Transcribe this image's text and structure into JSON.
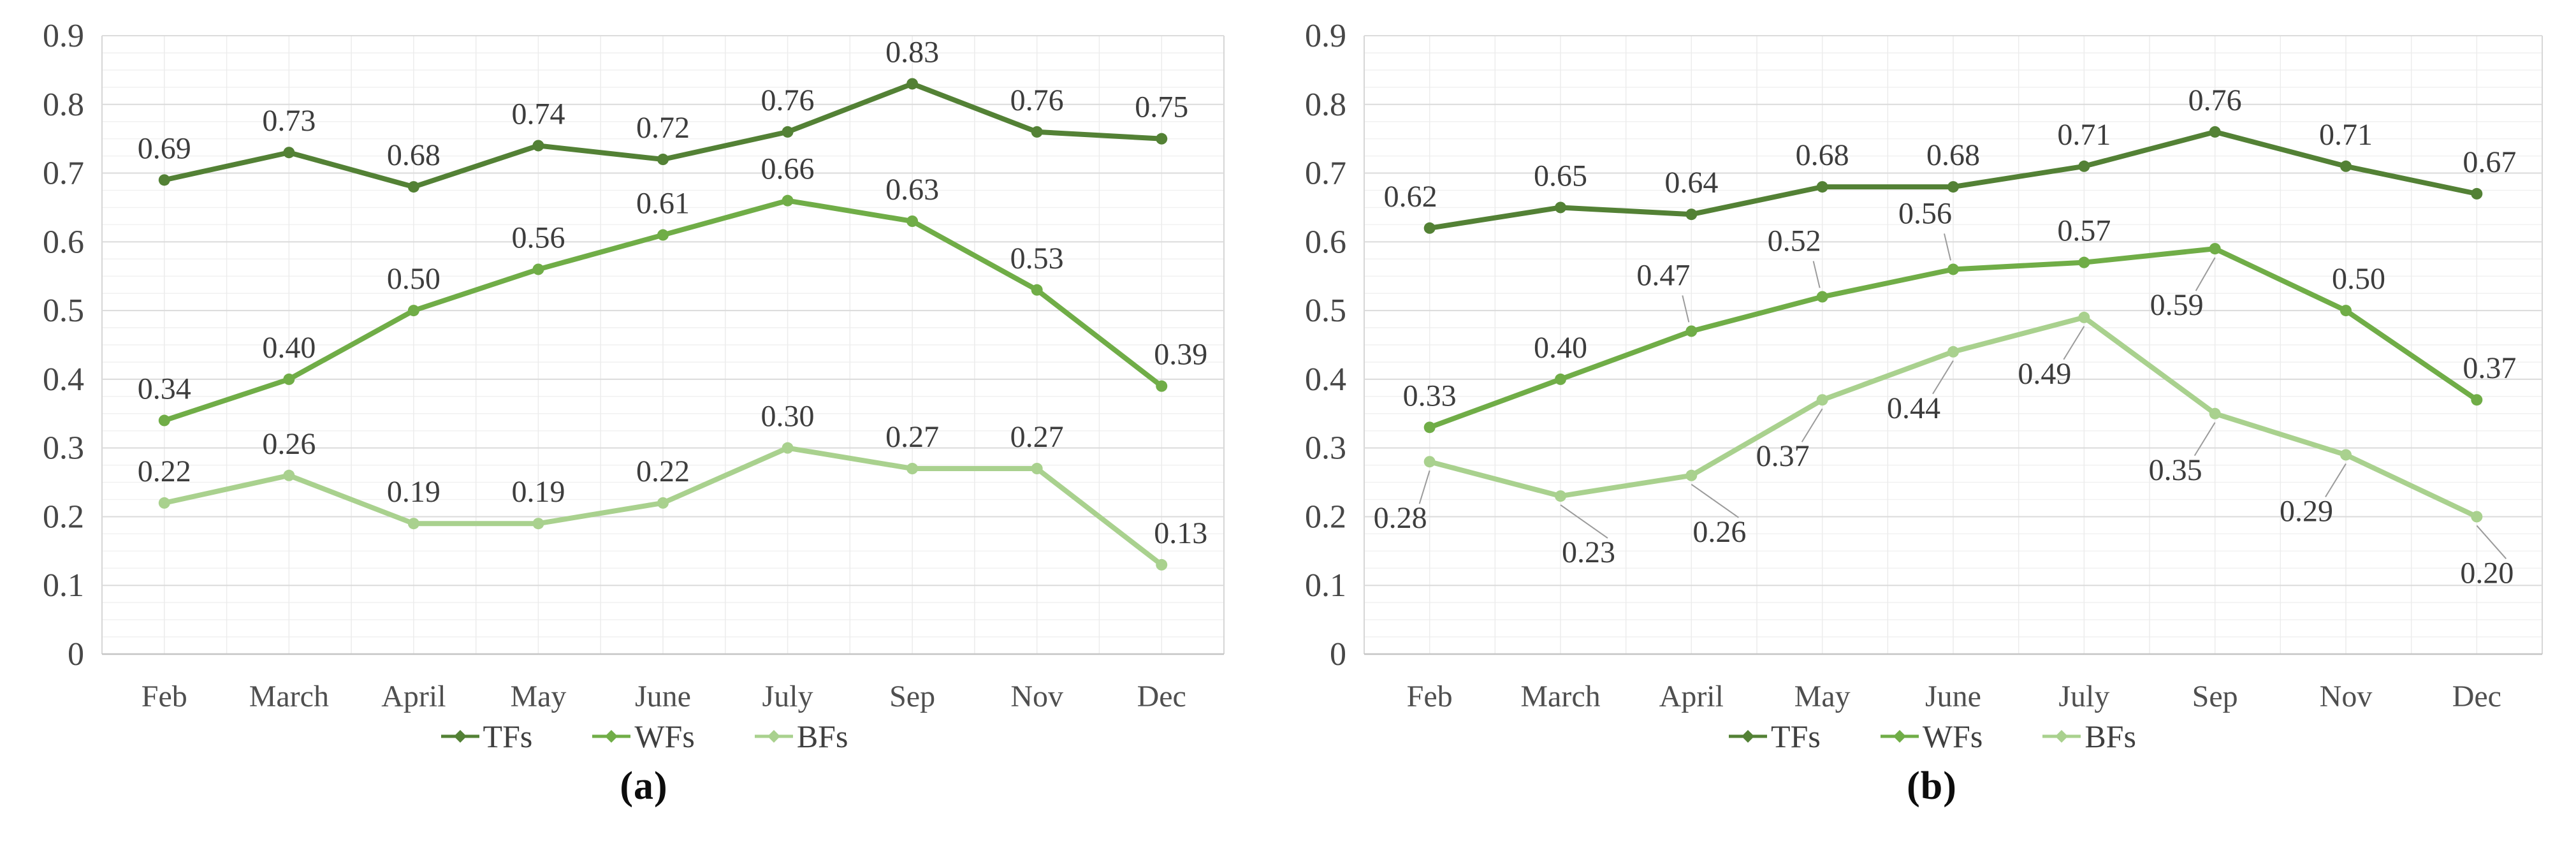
{
  "figure": {
    "background": "#ffffff",
    "text_color": "#3d3d3d",
    "axis_label_color": "#4f4f4f",
    "gridline_major_color": "#dbdbdb",
    "gridline_minor_color": "#f1f1f1"
  },
  "chart_data": [
    {
      "type": "line",
      "caption": "(a)",
      "categories": [
        "Feb",
        "March",
        "April",
        "May",
        "June",
        "July",
        "Sep",
        "Nov",
        "Dec"
      ],
      "xlabel": "",
      "ylabel": "",
      "ylim": [
        0,
        0.9
      ],
      "ytick_interval": 0.1,
      "yticks": [
        "0",
        "0.1",
        "0.2",
        "0.3",
        "0.4",
        "0.5",
        "0.6",
        "0.7",
        "0.8",
        "0.9"
      ],
      "grid": {
        "horizontal_major": true,
        "horizontal_minor": true,
        "vertical": true
      },
      "legend_position": "bottom",
      "series": [
        {
          "name": "TFs",
          "color": "#538135",
          "values": [
            0.69,
            0.73,
            0.68,
            0.74,
            0.72,
            0.76,
            0.83,
            0.76,
            0.75
          ],
          "labels": [
            "0.69",
            "0.73",
            "0.68",
            "0.74",
            "0.72",
            "0.76",
            "0.83",
            "0.76",
            "0.75"
          ],
          "label_pos": [
            "above",
            "above",
            "above",
            "above",
            "above",
            "above",
            "above",
            "above",
            "above"
          ],
          "label_leader": [
            false,
            false,
            false,
            false,
            false,
            false,
            false,
            false,
            false
          ],
          "label_dx": [
            0,
            0,
            0,
            0,
            0,
            0,
            0,
            0,
            0
          ]
        },
        {
          "name": "WFs",
          "color": "#70ad47",
          "values": [
            0.34,
            0.4,
            0.5,
            0.56,
            0.61,
            0.66,
            0.63,
            0.53,
            0.39
          ],
          "labels": [
            "0.34",
            "0.40",
            "0.50",
            "0.56",
            "0.61",
            "0.66",
            "0.63",
            "0.53",
            "0.39"
          ],
          "label_pos": [
            "above",
            "above",
            "above",
            "above",
            "above",
            "above",
            "above",
            "above",
            "above"
          ],
          "label_leader": [
            false,
            false,
            false,
            false,
            false,
            false,
            false,
            false,
            false
          ],
          "label_dx": [
            0,
            0,
            0,
            0,
            0,
            0,
            0,
            0,
            30
          ]
        },
        {
          "name": "BFs",
          "color": "#a9d18e",
          "values": [
            0.22,
            0.26,
            0.19,
            0.19,
            0.22,
            0.3,
            0.27,
            0.27,
            0.13
          ],
          "labels": [
            "0.22",
            "0.26",
            "0.19",
            "0.19",
            "0.22",
            "0.30",
            "0.27",
            "0.27",
            "0.13"
          ],
          "label_pos": [
            "above",
            "above",
            "above",
            "above",
            "above",
            "above",
            "above",
            "above",
            "above"
          ],
          "label_leader": [
            false,
            false,
            false,
            false,
            false,
            false,
            false,
            false,
            false
          ],
          "label_dx": [
            0,
            0,
            0,
            0,
            0,
            0,
            0,
            0,
            30
          ]
        }
      ]
    },
    {
      "type": "line",
      "caption": "(b)",
      "categories": [
        "Feb",
        "March",
        "April",
        "May",
        "June",
        "July",
        "Sep",
        "Nov",
        "Dec"
      ],
      "xlabel": "",
      "ylabel": "",
      "ylim": [
        0,
        0.9
      ],
      "ytick_interval": 0.1,
      "yticks": [
        "0",
        "0.1",
        "0.2",
        "0.3",
        "0.4",
        "0.5",
        "0.6",
        "0.7",
        "0.8",
        "0.9"
      ],
      "grid": {
        "horizontal_major": true,
        "horizontal_minor": true,
        "vertical": true
      },
      "legend_position": "bottom",
      "series": [
        {
          "name": "TFs",
          "color": "#538135",
          "values": [
            0.62,
            0.65,
            0.64,
            0.68,
            0.68,
            0.71,
            0.76,
            0.71,
            0.67
          ],
          "labels": [
            "0.62",
            "0.65",
            "0.64",
            "0.68",
            "0.68",
            "0.71",
            "0.76",
            "0.71",
            "0.67"
          ],
          "label_pos": [
            "above",
            "above",
            "above",
            "above",
            "above",
            "above",
            "above",
            "above",
            "above"
          ],
          "label_leader": [
            false,
            false,
            false,
            false,
            false,
            false,
            false,
            false,
            false
          ],
          "label_dx": [
            -30,
            0,
            0,
            0,
            0,
            0,
            0,
            0,
            20
          ]
        },
        {
          "name": "WFs",
          "color": "#70ad47",
          "values": [
            0.33,
            0.4,
            0.47,
            0.52,
            0.56,
            0.57,
            0.59,
            0.5,
            0.37
          ],
          "labels": [
            "0.33",
            "0.40",
            "0.47",
            "0.52",
            "0.56",
            "0.57",
            "0.59",
            "0.50",
            "0.37"
          ],
          "label_pos": [
            "above",
            "above",
            "above",
            "above",
            "above",
            "above",
            "below",
            "above",
            "above"
          ],
          "label_leader": [
            false,
            false,
            true,
            true,
            true,
            false,
            true,
            false,
            false
          ],
          "label_dx": [
            0,
            0,
            -44,
            -44,
            -44,
            0,
            -60,
            20,
            20
          ]
        },
        {
          "name": "BFs",
          "color": "#a9d18e",
          "values": [
            0.28,
            0.23,
            0.26,
            0.37,
            0.44,
            0.49,
            0.35,
            0.29,
            0.2
          ],
          "labels": [
            "0.28",
            "0.23",
            "0.26",
            "0.37",
            "0.44",
            "0.49",
            "0.35",
            "0.29",
            "0.20"
          ],
          "label_pos": [
            "below",
            "below",
            "below",
            "below",
            "below",
            "below",
            "below",
            "below",
            "below"
          ],
          "label_leader": [
            true,
            true,
            true,
            true,
            true,
            true,
            true,
            true,
            true
          ],
          "label_dx": [
            -46,
            44,
            44,
            -62,
            -62,
            -62,
            -62,
            -62,
            16
          ]
        }
      ]
    }
  ]
}
